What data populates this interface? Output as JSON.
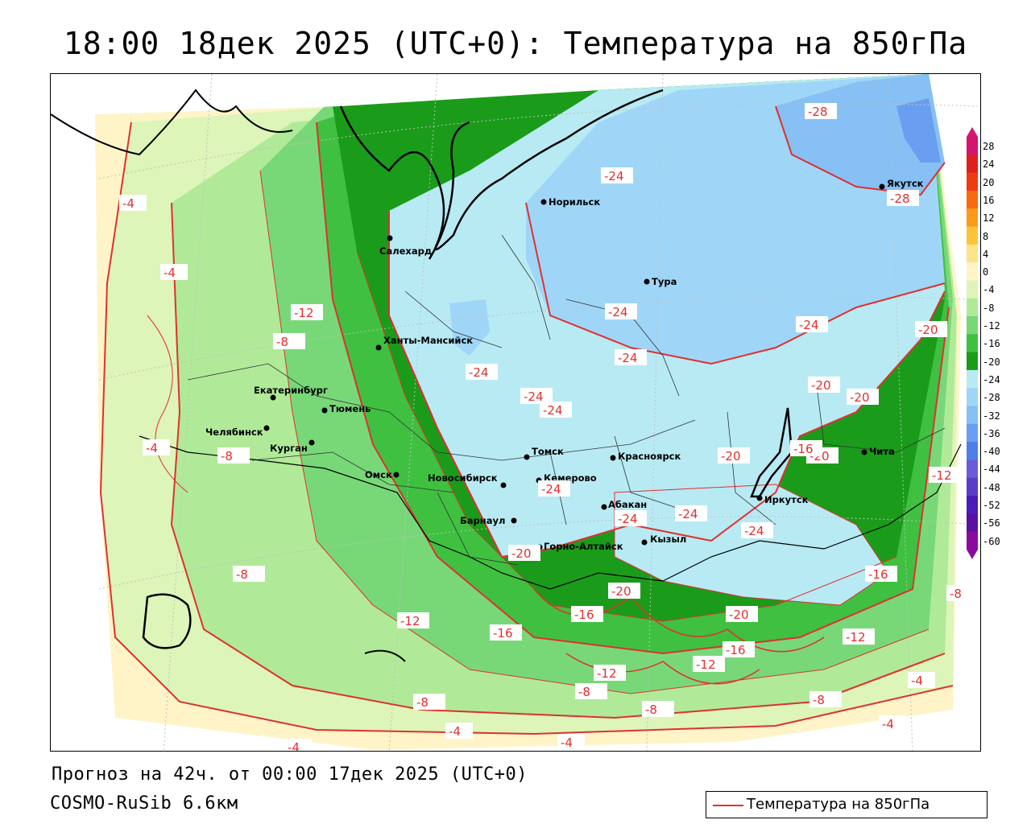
{
  "title": "18:00 18дек 2025 (UTC+0): Температура на 850гПа",
  "forecast_line": "Прогноз на 42ч. от 00:00 17дек 2025 (UTC+0)",
  "model_line": "COSMO-RuSib 6.6км",
  "legend": {
    "label": "Температура на 850гПа",
    "line_color": "#e03030"
  },
  "colorbar": {
    "ticks": [
      "28",
      "24",
      "20",
      "16",
      "12",
      "8",
      "4",
      "0",
      "-4",
      "-8",
      "-12",
      "-16",
      "-20",
      "-24",
      "-28",
      "-32",
      "-36",
      "-40",
      "-44",
      "-48",
      "-52",
      "-56",
      "-60"
    ],
    "colors": [
      "#d4146e",
      "#e0201f",
      "#f03a12",
      "#f86a10",
      "#fb9a18",
      "#fcc43c",
      "#fde488",
      "#fef4c8",
      "#ddf5b8",
      "#b0ea98",
      "#78d878",
      "#3fc040",
      "#1a9c1a",
      "#b8eaf4",
      "#9fd6f8",
      "#86c0f4",
      "#6a9ef0",
      "#4f7ee8",
      "#6a5cd8",
      "#5a3cc8",
      "#4a1cb8",
      "#5a10a0",
      "#8a0aa0"
    ],
    "top_arrow_color": "#d4146e",
    "bottom_arrow_color": "#8a0aa0"
  },
  "cities": [
    {
      "name": "Салехард"
    },
    {
      "name": "Норильск"
    },
    {
      "name": "Тура"
    },
    {
      "name": "Якутск"
    },
    {
      "name": "Ханты-Мансийск"
    },
    {
      "name": "Екатеринбург"
    },
    {
      "name": "Тюмень"
    },
    {
      "name": "Челябинск"
    },
    {
      "name": "Курган"
    },
    {
      "name": "Омск"
    },
    {
      "name": "Новосибирск"
    },
    {
      "name": "Томск"
    },
    {
      "name": "Кемерово"
    },
    {
      "name": "Красноярск"
    },
    {
      "name": "Барнаул"
    },
    {
      "name": "Абакан"
    },
    {
      "name": "Горно-Алтайск"
    },
    {
      "name": "Кызыл"
    },
    {
      "name": "Иркутск"
    },
    {
      "name": "Чита"
    }
  ],
  "isotherm_labels": [
    "-28",
    "-28",
    "-24",
    "-24",
    "-24",
    "-24",
    "-24",
    "-24",
    "-24",
    "-24",
    "-24",
    "-24",
    "-24",
    "-20",
    "-20",
    "-20",
    "-20",
    "-20",
    "-20",
    "-20",
    "-20",
    "-16",
    "-16",
    "-16",
    "-16",
    "-16",
    "-12",
    "-12",
    "-12",
    "-12",
    "-12",
    "-12",
    "-8",
    "-8",
    "-8",
    "-8",
    "-8",
    "-8",
    "-8",
    "-8",
    "-4",
    "-4",
    "-4",
    "-4",
    "-4",
    "-4",
    "-4",
    "-4"
  ]
}
